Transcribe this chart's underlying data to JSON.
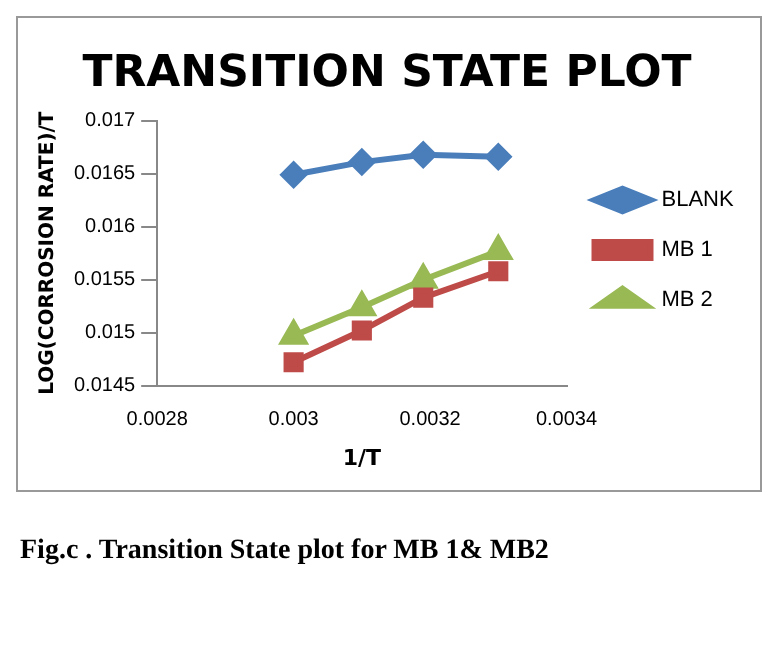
{
  "chart_data": {
    "type": "line",
    "title": "TRANSITION STATE PLOT",
    "xlabel": "1/T",
    "ylabel": "LOG(CORROSION RATE)/T",
    "x": [
      0.003,
      0.0031,
      0.00319,
      0.0033
    ],
    "series": [
      {
        "name": "BLANK",
        "color": "#4a7ebb",
        "marker": "diamond",
        "values": [
          0.01649,
          0.01661,
          0.01668,
          0.01666
        ]
      },
      {
        "name": "MB 1",
        "color": "#be4b48",
        "marker": "square",
        "values": [
          0.01472,
          0.01502,
          0.01533,
          0.01558
        ]
      },
      {
        "name": "MB 2",
        "color": "#98b954",
        "marker": "triangle",
        "values": [
          0.01497,
          0.01524,
          0.0155,
          0.01577
        ]
      }
    ],
    "xlim": [
      0.0028,
      0.0034
    ],
    "xticks": [
      0.0028,
      0.003,
      0.0032,
      0.0034
    ],
    "ylim": [
      0.0145,
      0.017
    ],
    "yticks": [
      0.0145,
      0.015,
      0.0155,
      0.016,
      0.0165,
      0.017
    ],
    "grid": false,
    "legend": "right",
    "line_style": "solid",
    "annotations": [
      "Fig.c . Transition State plot for MB 1& MB2"
    ]
  }
}
